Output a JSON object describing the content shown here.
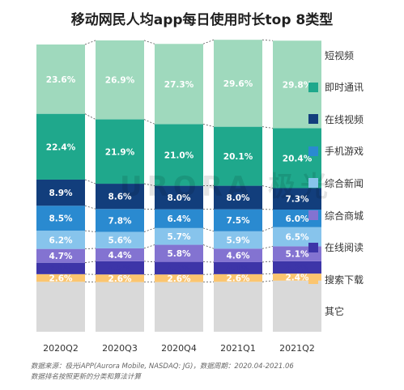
{
  "chart_data": {
    "type": "bar",
    "stacked": true,
    "title": "移动网民人均app每日使用时长top 8类型",
    "categories": [
      "2020Q2",
      "2020Q3",
      "2020Q4",
      "2021Q1",
      "2021Q2"
    ],
    "series": [
      {
        "name": "其它",
        "color": "#d9d9d9",
        "values": [
          17.0,
          16.9,
          16.9,
          17.0,
          17.4
        ],
        "labels": [
          "",
          "",
          "",
          "",
          ""
        ]
      },
      {
        "name": "搜索下载",
        "color": "#fbc56f",
        "values": [
          2.6,
          2.6,
          2.6,
          2.6,
          2.4
        ],
        "labels": [
          "2.6%",
          "2.6%",
          "2.6%",
          "2.6%",
          "2.4%"
        ]
      },
      {
        "name": "在线阅读",
        "color": "#3d35a8",
        "values": [
          3.9,
          4.5,
          4.3,
          4.1,
          4.2
        ],
        "labels": [
          "3.9%",
          "4.5%",
          "4.3%",
          "4.1%",
          "4.2%"
        ]
      },
      {
        "name": "综合商城",
        "color": "#8373d1",
        "values": [
          4.7,
          4.4,
          5.8,
          4.6,
          5.1
        ],
        "labels": [
          "4.7%",
          "4.4%",
          "5.8%",
          "4.6%",
          "5.1%"
        ]
      },
      {
        "name": "综合新闻",
        "color": "#87c4ec",
        "values": [
          6.2,
          5.6,
          5.7,
          5.9,
          6.5
        ],
        "labels": [
          "6.2%",
          "5.6%",
          "5.7%",
          "5.9%",
          "6.5%"
        ]
      },
      {
        "name": "手机游戏",
        "color": "#2a8ad0",
        "values": [
          8.5,
          7.8,
          6.4,
          7.5,
          6.0
        ],
        "labels": [
          "8.5%",
          "7.8%",
          "6.4%",
          "7.5%",
          "6.0%"
        ]
      },
      {
        "name": "在线视频",
        "color": "#123e7c",
        "values": [
          8.9,
          8.6,
          8.0,
          8.0,
          7.3
        ],
        "labels": [
          "8.9%",
          "8.6%",
          "8.0%",
          "8.0%",
          "7.3%"
        ]
      },
      {
        "name": "即时通讯",
        "color": "#1fa88c",
        "values": [
          22.4,
          21.9,
          21.0,
          20.1,
          20.4
        ],
        "labels": [
          "22.4%",
          "21.9%",
          "21.0%",
          "20.1%",
          "20.4%"
        ]
      },
      {
        "name": "短视频",
        "color": "#9fd9bd",
        "values": [
          23.6,
          26.9,
          27.3,
          29.6,
          29.8
        ],
        "labels": [
          "23.6%",
          "26.9%",
          "27.3%",
          "29.6%",
          "29.8%"
        ]
      }
    ],
    "legend_order": [
      "短视频",
      "即时通讯",
      "在线视频",
      "手机游戏",
      "综合新闻",
      "综合商城",
      "在线阅读",
      "搜索下载",
      "其它"
    ],
    "legend_position": "right",
    "ylim": [
      0,
      100
    ],
    "grid": false,
    "label_colors": {
      "dark_text": "#3d35a8",
      "light_text": "#ffffff",
      "search_text": "#ffffff"
    }
  },
  "footnotes": [
    "数据来源：极光iAPP(Aurora Mobile, NASDAQ: JG)，数据周期：2020.04-2021.06",
    "数据排名按照更新的分类和算法计算"
  ],
  "watermark": "URORA 极光"
}
